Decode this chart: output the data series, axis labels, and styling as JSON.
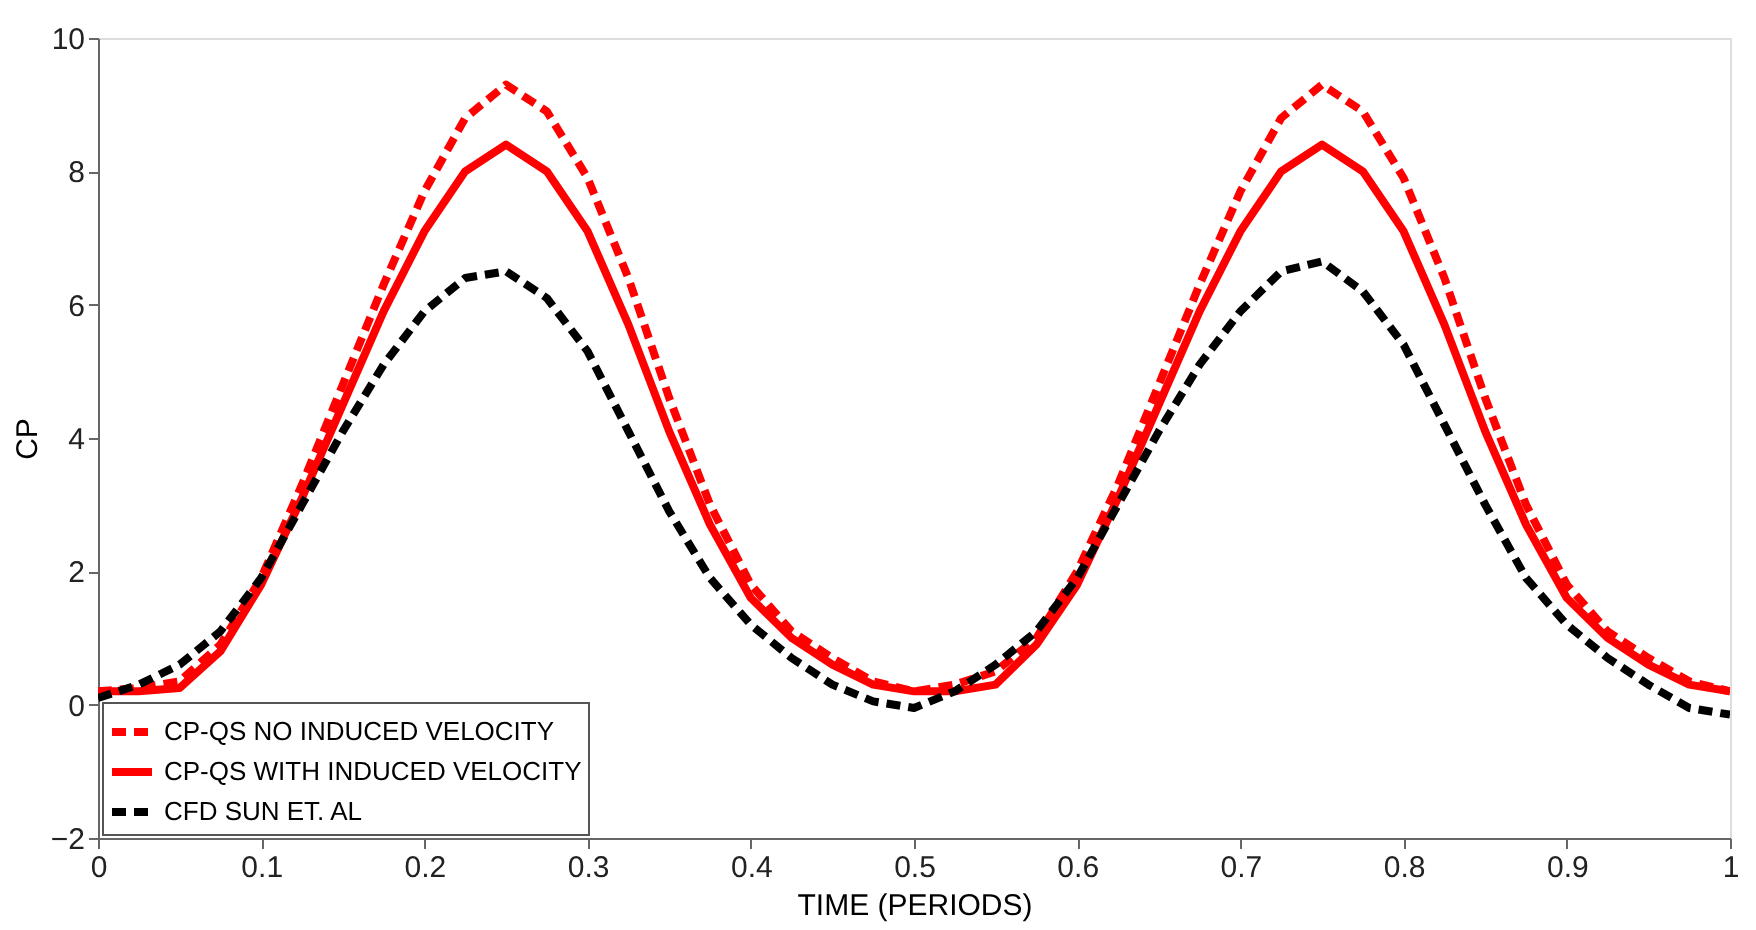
{
  "chart_data": {
    "type": "line",
    "xlabel": "TIME (PERIODS)",
    "ylabel": "CP",
    "x": [
      0,
      0.025,
      0.05,
      0.075,
      0.1,
      0.125,
      0.15,
      0.175,
      0.2,
      0.225,
      0.25,
      0.275,
      0.3,
      0.325,
      0.35,
      0.375,
      0.4,
      0.425,
      0.45,
      0.475,
      0.5,
      0.525,
      0.55,
      0.575,
      0.6,
      0.625,
      0.65,
      0.675,
      0.7,
      0.725,
      0.75,
      0.775,
      0.8,
      0.825,
      0.85,
      0.875,
      0.9,
      0.925,
      0.95,
      0.975,
      1
    ],
    "series": [
      {
        "name": "CP-QS NO INDUCED VELOCITY",
        "color": "#ff0000",
        "line_style": "dashed",
        "values": [
          0.2,
          0.25,
          0.35,
          0.9,
          1.9,
          3.3,
          4.8,
          6.3,
          7.7,
          8.8,
          9.3,
          8.9,
          7.9,
          6.4,
          4.6,
          3.0,
          1.8,
          1.1,
          0.7,
          0.35,
          0.2,
          0.3,
          0.5,
          1.0,
          2.0,
          3.3,
          4.8,
          6.3,
          7.7,
          8.8,
          9.3,
          8.9,
          7.9,
          6.4,
          4.6,
          3.0,
          1.8,
          1.1,
          0.7,
          0.35,
          0.2
        ]
      },
      {
        "name": "CP-QS WITH INDUCED VELOCITY",
        "color": "#ff0000",
        "line_style": "solid",
        "values": [
          0.2,
          0.2,
          0.25,
          0.8,
          1.8,
          3.1,
          4.5,
          5.9,
          7.1,
          8.0,
          8.4,
          8.0,
          7.1,
          5.7,
          4.1,
          2.7,
          1.6,
          1.0,
          0.6,
          0.3,
          0.2,
          0.2,
          0.3,
          0.9,
          1.8,
          3.1,
          4.5,
          5.9,
          7.1,
          8.0,
          8.4,
          8.0,
          7.1,
          5.7,
          4.1,
          2.7,
          1.6,
          1.0,
          0.6,
          0.3,
          0.2
        ]
      },
      {
        "name": "CFD SUN ET. AL",
        "color": "#000000",
        "line_style": "dashed",
        "values": [
          0.1,
          0.3,
          0.6,
          1.1,
          1.9,
          3.0,
          4.1,
          5.1,
          5.9,
          6.4,
          6.5,
          6.1,
          5.3,
          4.1,
          2.9,
          1.9,
          1.2,
          0.7,
          0.3,
          0.05,
          -0.05,
          0.2,
          0.6,
          1.1,
          1.9,
          3.0,
          4.1,
          5.1,
          5.9,
          6.5,
          6.65,
          6.2,
          5.4,
          4.2,
          3.0,
          1.9,
          1.2,
          0.7,
          0.3,
          -0.05,
          -0.15
        ]
      }
    ],
    "xlim": [
      0,
      1
    ],
    "xticks": [
      0,
      0.1,
      0.2,
      0.3,
      0.4,
      0.5,
      0.6,
      0.7,
      0.8,
      0.9,
      1
    ],
    "ylim": [
      -2,
      10
    ],
    "yticks": [
      -2,
      0,
      2,
      4,
      6,
      8,
      10
    ],
    "grid": false,
    "legend": "bottom left",
    "marker": "none"
  }
}
